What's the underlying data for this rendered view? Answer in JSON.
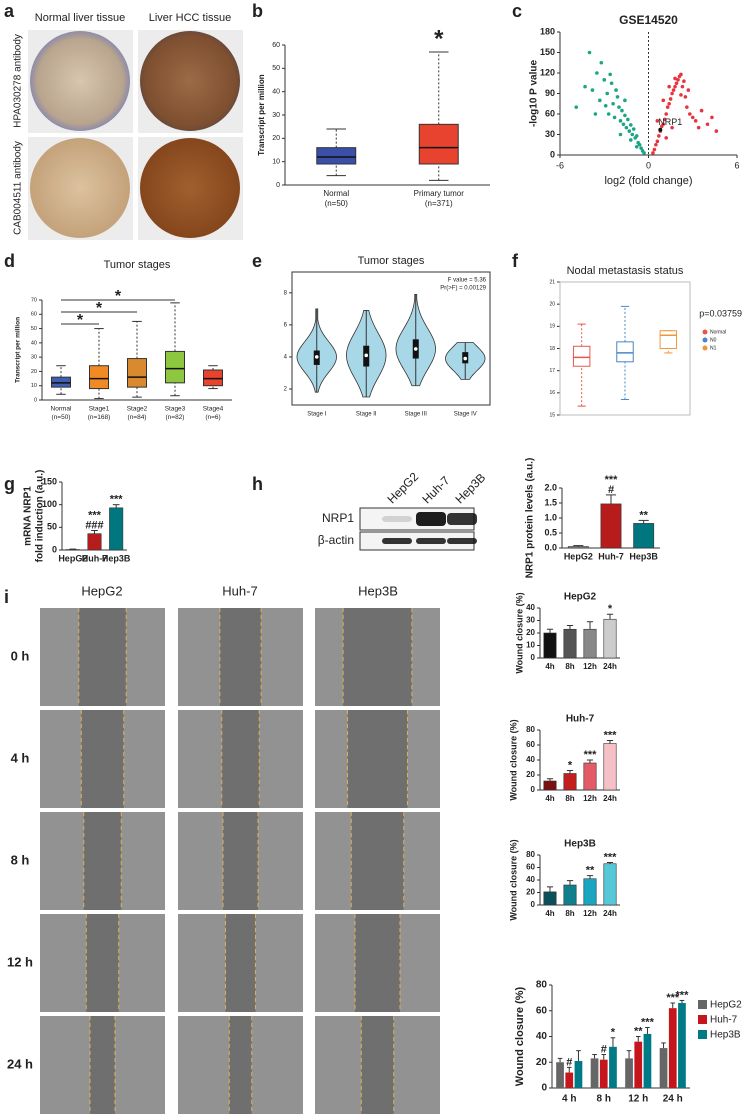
{
  "panel_letters": [
    "a",
    "b",
    "c",
    "d",
    "e",
    "f",
    "g",
    "h",
    "i"
  ],
  "panel_a": {
    "columns": [
      "Normal liver tissue",
      "Liver HCC tissue"
    ],
    "rows": [
      "HPA030278 antibody",
      "CAB004511 antibody"
    ]
  },
  "panel_h_blot": {
    "lanes": [
      "HepG2",
      "Huh-7",
      "Hep3B"
    ],
    "bands": [
      "NRP1",
      "β-actin"
    ]
  },
  "panel_i": {
    "columns": [
      "HepG2",
      "Huh-7",
      "Hep3B"
    ],
    "rows": [
      "0 h",
      "4 h",
      "8 h",
      "12 h",
      "24 h"
    ]
  },
  "chart_data": [
    {
      "type": "box",
      "ylabel": "Transcript per million",
      "ylim": [
        0,
        60
      ],
      "yticks": [
        0,
        10,
        20,
        30,
        40,
        50,
        60
      ],
      "boxes": [
        {
          "label": "Normal",
          "note": "(n=50)",
          "color": "#3a4fa8",
          "min": 4,
          "q1": 9,
          "median": 12,
          "q3": 16,
          "max": 24
        },
        {
          "label": "Primary tumor",
          "note": "(n=371)",
          "color": "#e8432f",
          "min": 2,
          "q1": 9,
          "median": 16,
          "q3": 26,
          "max": 57,
          "annotation": "*"
        }
      ]
    },
    {
      "type": "scatter",
      "title": "GSE14520",
      "xlabel": "log2 (fold change)",
      "ylabel": "-log10 P value",
      "xlim": [
        -6,
        6
      ],
      "xticks": [
        -6,
        0,
        6
      ],
      "ylim": [
        0,
        180
      ],
      "yticks": [
        0,
        30,
        60,
        90,
        120,
        150,
        180
      ],
      "vline": 0,
      "series": [
        {
          "color": "#1aa584",
          "x": [
            -4.9,
            -4.3,
            -4.0,
            -3.8,
            -3.5,
            -3.3,
            -3.2,
            -3.0,
            -2.8,
            -2.7,
            -2.5,
            -2.4,
            -2.3,
            -2.1,
            -2.0,
            -1.9,
            -1.8,
            -1.7,
            -1.6,
            -1.5,
            -1.4,
            -1.3,
            -1.2,
            -1.1,
            -1.0,
            -0.9,
            -0.8,
            -0.7,
            -0.6,
            -0.5,
            -0.4,
            -0.3,
            -3.6,
            -2.9,
            -2.2,
            -1.6,
            -1.2,
            -0.8,
            -2.6,
            -1.9
          ],
          "y": [
            70,
            100,
            150,
            95,
            120,
            80,
            135,
            110,
            90,
            60,
            105,
            75,
            55,
            85,
            70,
            50,
            65,
            45,
            58,
            40,
            52,
            35,
            44,
            30,
            38,
            25,
            28,
            18,
            15,
            10,
            6,
            3,
            60,
            72,
            95,
            80,
            22,
            12,
            118,
            30
          ]
        },
        {
          "color": "#e8343f",
          "x": [
            0.3,
            0.4,
            0.5,
            0.6,
            0.7,
            0.8,
            0.9,
            1.0,
            1.1,
            1.2,
            1.3,
            1.4,
            1.5,
            1.6,
            1.7,
            1.8,
            1.9,
            2.0,
            2.1,
            2.2,
            2.3,
            2.5,
            2.6,
            2.7,
            2.8,
            3.0,
            3.2,
            3.4,
            3.6,
            4.0,
            4.3,
            4.6,
            1.0,
            1.4,
            1.8,
            2.2,
            1.2,
            1.6,
            2.4,
            0.6
          ],
          "y": [
            3,
            8,
            15,
            20,
            28,
            35,
            42,
            45,
            52,
            60,
            70,
            75,
            82,
            90,
            95,
            100,
            105,
            110,
            115,
            118,
            100,
            85,
            70,
            95,
            60,
            55,
            50,
            40,
            65,
            45,
            55,
            35,
            80,
            100,
            112,
            88,
            25,
            40,
            108,
            50
          ]
        }
      ],
      "highlight": {
        "label": "NRP1",
        "x": 0.8,
        "y": 37
      }
    },
    {
      "type": "box",
      "title": "Tumor stages",
      "ylabel": "Transcript per million",
      "ylim": [
        0,
        70
      ],
      "yticks": [
        0,
        10,
        20,
        30,
        40,
        50,
        60,
        70
      ],
      "boxes": [
        {
          "label": "Normal",
          "note": "(n=50)",
          "color": "#3f5fb0",
          "min": 4,
          "q1": 9,
          "median": 12,
          "q3": 16,
          "max": 24
        },
        {
          "label": "Stage1",
          "note": "(n=168)",
          "color": "#f08a24",
          "min": 1,
          "q1": 8,
          "median": 15,
          "q3": 24,
          "max": 50
        },
        {
          "label": "Stage2",
          "note": "(n=84)",
          "color": "#d98a2e",
          "min": 2,
          "q1": 9,
          "median": 16,
          "q3": 29,
          "max": 55
        },
        {
          "label": "Stage3",
          "note": "(n=82)",
          "color": "#8dc63f",
          "min": 3,
          "q1": 12,
          "median": 22,
          "q3": 34,
          "max": 68
        },
        {
          "label": "Stage4",
          "note": "(n=6)",
          "color": "#e8432f",
          "min": 8,
          "q1": 10,
          "median": 15,
          "q3": 21,
          "max": 24
        }
      ],
      "comparisons": [
        {
          "from": 0,
          "to": 1,
          "label": "*"
        },
        {
          "from": 0,
          "to": 2,
          "label": "*"
        },
        {
          "from": 0,
          "to": 3,
          "label": "*"
        }
      ]
    },
    {
      "type": "violin",
      "title": "Tumor stages",
      "ylim": [
        1,
        9.3
      ],
      "yticks": [
        2,
        4,
        6,
        8
      ],
      "notes": [
        "F value = 5.36",
        "Pr(>F) = 0.00129"
      ],
      "color": "#a8d8e8",
      "violins": [
        {
          "label": "Stage I",
          "min": 1.8,
          "q1": 3.5,
          "median": 4.0,
          "q3": 4.4,
          "max": 7.0
        },
        {
          "label": "Stage II",
          "min": 1.5,
          "q1": 3.4,
          "median": 4.1,
          "q3": 4.7,
          "max": 6.9
        },
        {
          "label": "Stage III",
          "min": 2.2,
          "q1": 3.9,
          "median": 4.5,
          "q3": 5.1,
          "max": 7.9
        },
        {
          "label": "Stage IV",
          "min": 2.6,
          "q1": 3.6,
          "median": 3.9,
          "q3": 4.3,
          "max": 4.9
        }
      ]
    },
    {
      "type": "box",
      "title": "Nodal metastasis status",
      "ylim": [
        15,
        21
      ],
      "yticks": [
        15,
        16,
        17,
        18,
        19,
        20,
        21
      ],
      "notes": [
        "p=0.03759"
      ],
      "boxes": [
        {
          "name": "Normal",
          "color": "#e8574a",
          "min": 15.4,
          "q1": 17.2,
          "median": 17.6,
          "q3": 18.1,
          "max": 19.1
        },
        {
          "name": "N0",
          "color": "#4a86c5",
          "min": 15.7,
          "q1": 17.4,
          "median": 17.8,
          "q3": 18.3,
          "max": 19.9
        },
        {
          "name": "N1",
          "color": "#f0953a",
          "min": 17.8,
          "q1": 18.0,
          "median": 18.6,
          "q3": 18.8,
          "max": 18.8
        }
      ]
    },
    {
      "type": "bar",
      "ylabel": [
        "mRNA NRP1",
        "fold induction (a.u.)"
      ],
      "ylim": [
        0,
        150
      ],
      "yticks": [
        0,
        50,
        100,
        150
      ],
      "categories": [
        "HepG2",
        "Huh-7",
        "Hep3B"
      ],
      "colors": [
        "#888888",
        "#b71c1c",
        "#00777f"
      ],
      "values": [
        1,
        36,
        93
      ],
      "errors": [
        1,
        7,
        7
      ],
      "annotations": [
        [],
        [
          "***",
          "###"
        ],
        [
          "***"
        ]
      ]
    },
    {
      "type": "bar",
      "ylabel": "NRP1 protein levels (a.u.)",
      "ylim": [
        0,
        2
      ],
      "yticks": [
        {
          "value": 0,
          "label": "0.0"
        },
        {
          "value": 0.5,
          "label": "0.5"
        },
        {
          "value": 1,
          "label": "1.0"
        },
        {
          "value": 1.5,
          "label": "1.5"
        },
        {
          "value": 2,
          "label": "2.0"
        }
      ],
      "categories": [
        "HepG2",
        "Huh-7",
        "Hep3B"
      ],
      "colors": [
        "#888888",
        "#b71c1c",
        "#00777f"
      ],
      "values": [
        0.05,
        1.47,
        0.82
      ],
      "errors": [
        0.03,
        0.3,
        0.1
      ],
      "annotations": [
        [],
        [
          "***",
          "#"
        ],
        [
          "**"
        ]
      ]
    },
    {
      "type": "bar",
      "title": "HepG2",
      "ylabel": "Wound closure (%)",
      "ylim": [
        0,
        40
      ],
      "yticks": [
        0,
        10,
        20,
        30,
        40
      ],
      "categories": [
        "4h",
        "8h",
        "12h",
        "24h"
      ],
      "colors": [
        "#111111",
        "#555555",
        "#888888",
        "#cccccc"
      ],
      "values": [
        20,
        23,
        23,
        31
      ],
      "errors": [
        3,
        3,
        6,
        4
      ],
      "annotations": [
        [],
        [],
        [],
        [
          "*"
        ]
      ]
    },
    {
      "type": "bar",
      "title": "Huh-7",
      "ylabel": "Wound closure (%)",
      "ylim": [
        0,
        80
      ],
      "yticks": [
        0,
        20,
        40,
        60,
        80
      ],
      "categories": [
        "4h",
        "8h",
        "12h",
        "24h"
      ],
      "colors": [
        "#7a1010",
        "#c41f1f",
        "#e35b66",
        "#f6c1c6"
      ],
      "values": [
        12,
        22,
        36,
        62
      ],
      "errors": [
        3,
        4,
        4,
        4
      ],
      "annotations": [
        [],
        [
          "*"
        ],
        [
          "***"
        ],
        [
          "***"
        ]
      ]
    },
    {
      "type": "bar",
      "title": "Hep3B",
      "ylabel": "Wound closure (%)",
      "ylim": [
        0,
        80
      ],
      "yticks": [
        0,
        20,
        40,
        60,
        80
      ],
      "categories": [
        "4h",
        "8h",
        "12h",
        "24h"
      ],
      "colors": [
        "#0b4f5a",
        "#117f8c",
        "#1aa6c0",
        "#56c8d8"
      ],
      "values": [
        21,
        32,
        42,
        66
      ],
      "errors": [
        8,
        7,
        5,
        2
      ],
      "annotations": [
        [],
        [],
        [
          "**"
        ],
        [
          "***"
        ]
      ]
    },
    {
      "type": "grouped_bar",
      "ylabel": "Wound closure (%)",
      "ylim": [
        0,
        80
      ],
      "yticks": [
        0,
        20,
        40,
        60,
        80
      ],
      "categories": [
        "4 h",
        "8 h",
        "12 h",
        "24 h"
      ],
      "series": [
        {
          "name": "HepG2",
          "color": "#666666",
          "values": [
            20,
            23,
            23,
            31
          ],
          "errors": [
            3,
            3,
            6,
            4
          ],
          "annotations": [
            [],
            [],
            [],
            []
          ]
        },
        {
          "name": "Huh-7",
          "color": "#c4161c",
          "values": [
            12,
            22,
            36,
            62
          ],
          "errors": [
            4,
            4,
            4,
            4
          ],
          "annotations": [
            [
              "#"
            ],
            [
              "#"
            ],
            [
              "**"
            ],
            [
              "***"
            ]
          ]
        },
        {
          "name": "Hep3B",
          "color": "#007a87",
          "values": [
            21,
            32,
            42,
            66
          ],
          "errors": [
            8,
            7,
            5,
            2
          ],
          "annotations": [
            [],
            [
              "*"
            ],
            [
              "***"
            ],
            [
              "***"
            ]
          ]
        }
      ]
    }
  ]
}
